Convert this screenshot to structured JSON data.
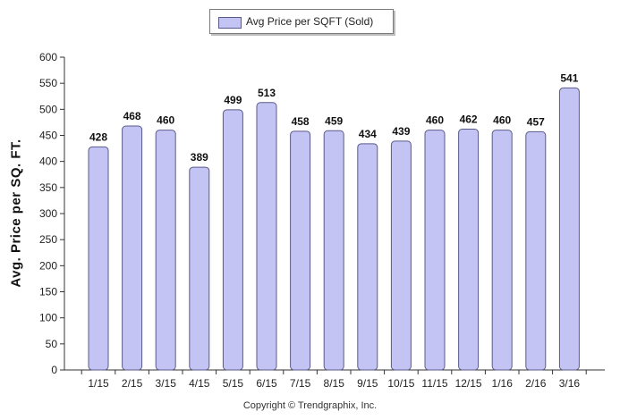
{
  "chart_data": {
    "type": "bar",
    "categories": [
      "1/15",
      "2/15",
      "3/15",
      "4/15",
      "5/15",
      "6/15",
      "7/15",
      "8/15",
      "9/15",
      "10/15",
      "11/15",
      "12/15",
      "1/16",
      "2/16",
      "3/16"
    ],
    "values": [
      428,
      468,
      460,
      389,
      499,
      513,
      458,
      459,
      434,
      439,
      460,
      462,
      460,
      457,
      541
    ],
    "data_labels": [
      "428",
      "468",
      "460",
      "389",
      "499",
      "513",
      "458",
      "459",
      "434",
      "439",
      "460",
      "462",
      "460",
      "457",
      "541"
    ],
    "series": [
      {
        "name": "Avg Price per SQFT (Sold)",
        "values": [
          428,
          468,
          460,
          389,
          499,
          513,
          458,
          459,
          434,
          439,
          460,
          462,
          460,
          457,
          541
        ]
      }
    ],
    "ylabel": "Avg. Price per SQ. FT.",
    "xlabel": "",
    "ylim": [
      0,
      600
    ],
    "yticks": [
      0,
      50,
      100,
      150,
      200,
      250,
      300,
      350,
      400,
      450,
      500,
      550,
      600
    ],
    "legend": "top-center",
    "grid": false,
    "bar_color": "#c4c4f4",
    "bar_edge_color": "#5a5a8a"
  },
  "legend_label": "Avg Price per SQFT (Sold)",
  "copyright": "Copyright © Trendgraphix, Inc."
}
